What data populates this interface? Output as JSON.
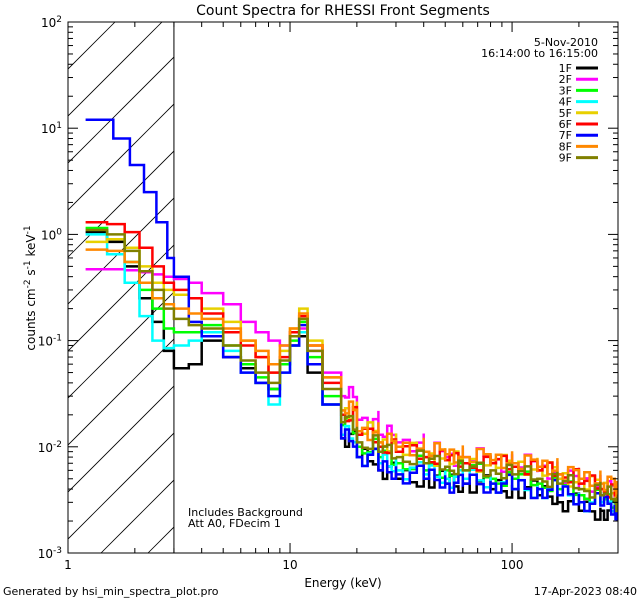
{
  "chart_data": {
    "type": "line",
    "title": "Count Spectra for RHESSI Front Segments",
    "xlabel": "Energy (keV)",
    "ylabel": "counts cm^-2 s^-1 keV^-1",
    "xscale": "log",
    "yscale": "log",
    "xlim": [
      1,
      300
    ],
    "ylim": [
      0.001,
      100
    ],
    "x_ticks": [
      {
        "value": 1,
        "label": "1"
      },
      {
        "value": 10,
        "label": "10"
      },
      {
        "value": 100,
        "label": "100"
      }
    ],
    "y_ticks": [
      {
        "value": 0.001,
        "base": "10",
        "exp": "-3"
      },
      {
        "value": 0.01,
        "base": "10",
        "exp": "-2"
      },
      {
        "value": 0.1,
        "base": "10",
        "exp": "-1"
      },
      {
        "value": 1,
        "base": "10",
        "exp": "0"
      },
      {
        "value": 10,
        "base": "10",
        "exp": "1"
      },
      {
        "value": 100,
        "base": "10",
        "exp": "2"
      }
    ],
    "hatched_region": {
      "from": 1,
      "to": 3
    },
    "date": "5-Nov-2010",
    "time_range": "16:14:00 to 16:15:00",
    "annotations": [
      "Includes Background",
      "Att A0, FDecim 1"
    ],
    "series": [
      {
        "name": "1F",
        "color": "#000000",
        "points": [
          [
            1.2,
            1.05
          ],
          [
            1.5,
            0.85
          ],
          [
            1.8,
            0.5
          ],
          [
            2.1,
            0.25
          ],
          [
            2.4,
            0.15
          ],
          [
            2.7,
            0.08
          ],
          [
            3.0,
            0.055
          ],
          [
            3.5,
            0.06
          ],
          [
            4.0,
            0.1
          ],
          [
            5.0,
            0.07
          ],
          [
            6.0,
            0.055
          ],
          [
            7.0,
            0.04
          ],
          [
            8.0,
            0.035
          ],
          [
            9.0,
            0.06
          ],
          [
            10.0,
            0.09
          ],
          [
            11.0,
            0.11
          ],
          [
            12.0,
            0.05
          ],
          [
            14.0,
            0.025
          ],
          [
            17.0,
            0.012
          ],
          [
            20.0,
            0.008
          ],
          [
            25.0,
            0.006
          ],
          [
            30.0,
            0.005
          ],
          [
            40.0,
            0.005
          ],
          [
            50.0,
            0.0045
          ],
          [
            60.0,
            0.0045
          ],
          [
            80.0,
            0.004
          ],
          [
            100.0,
            0.004
          ],
          [
            130.0,
            0.0035
          ],
          [
            160.0,
            0.003
          ],
          [
            200.0,
            0.0025
          ],
          [
            250.0,
            0.0025
          ],
          [
            290.0,
            0.0025
          ]
        ]
      },
      {
        "name": "2F",
        "color": "#ff00ff",
        "points": [
          [
            1.2,
            0.47
          ],
          [
            1.5,
            0.47
          ],
          [
            1.8,
            0.46
          ],
          [
            2.1,
            0.44
          ],
          [
            2.4,
            0.42
          ],
          [
            2.7,
            0.4
          ],
          [
            3.0,
            0.38
          ],
          [
            3.5,
            0.35
          ],
          [
            4.0,
            0.28
          ],
          [
            5.0,
            0.22
          ],
          [
            6.0,
            0.15
          ],
          [
            7.0,
            0.12
          ],
          [
            8.0,
            0.1
          ],
          [
            9.0,
            0.09
          ],
          [
            10.0,
            0.11
          ],
          [
            11.0,
            0.13
          ],
          [
            12.0,
            0.08
          ],
          [
            14.0,
            0.05
          ],
          [
            17.0,
            0.03
          ],
          [
            20.0,
            0.018
          ],
          [
            25.0,
            0.013
          ],
          [
            30.0,
            0.011
          ],
          [
            40.0,
            0.009
          ],
          [
            50.0,
            0.008
          ],
          [
            60.0,
            0.008
          ],
          [
            80.0,
            0.007
          ],
          [
            100.0,
            0.007
          ],
          [
            130.0,
            0.006
          ],
          [
            160.0,
            0.005
          ],
          [
            200.0,
            0.0045
          ],
          [
            250.0,
            0.004
          ],
          [
            290.0,
            0.0035
          ]
        ]
      },
      {
        "name": "3F",
        "color": "#00ff00",
        "points": [
          [
            1.2,
            1.15
          ],
          [
            1.5,
            0.9
          ],
          [
            1.8,
            0.55
          ],
          [
            2.1,
            0.3
          ],
          [
            2.4,
            0.2
          ],
          [
            2.7,
            0.13
          ],
          [
            3.0,
            0.12
          ],
          [
            3.5,
            0.12
          ],
          [
            4.0,
            0.14
          ],
          [
            5.0,
            0.09
          ],
          [
            6.0,
            0.06
          ],
          [
            7.0,
            0.045
          ],
          [
            8.0,
            0.035
          ],
          [
            9.0,
            0.06
          ],
          [
            10.0,
            0.1
          ],
          [
            11.0,
            0.15
          ],
          [
            12.0,
            0.07
          ],
          [
            14.0,
            0.03
          ],
          [
            17.0,
            0.016
          ],
          [
            20.0,
            0.01
          ],
          [
            25.0,
            0.008
          ],
          [
            30.0,
            0.007
          ],
          [
            40.0,
            0.006
          ],
          [
            50.0,
            0.006
          ],
          [
            60.0,
            0.006
          ],
          [
            80.0,
            0.005
          ],
          [
            100.0,
            0.005
          ],
          [
            130.0,
            0.0045
          ],
          [
            160.0,
            0.004
          ],
          [
            200.0,
            0.0035
          ],
          [
            250.0,
            0.003
          ],
          [
            290.0,
            0.003
          ]
        ]
      },
      {
        "name": "4F",
        "color": "#00ffff",
        "points": [
          [
            1.2,
            1.0
          ],
          [
            1.5,
            0.65
          ],
          [
            1.8,
            0.35
          ],
          [
            2.1,
            0.17
          ],
          [
            2.4,
            0.1
          ],
          [
            2.7,
            0.085
          ],
          [
            3.0,
            0.09
          ],
          [
            3.5,
            0.1
          ],
          [
            4.0,
            0.12
          ],
          [
            5.0,
            0.08
          ],
          [
            6.0,
            0.05
          ],
          [
            7.0,
            0.04
          ],
          [
            8.0,
            0.025
          ],
          [
            9.0,
            0.05
          ],
          [
            10.0,
            0.09
          ],
          [
            11.0,
            0.12
          ],
          [
            12.0,
            0.06
          ],
          [
            14.0,
            0.025
          ],
          [
            17.0,
            0.013
          ],
          [
            20.0,
            0.008
          ],
          [
            25.0,
            0.007
          ],
          [
            30.0,
            0.006
          ],
          [
            40.0,
            0.0055
          ],
          [
            50.0,
            0.005
          ],
          [
            60.0,
            0.005
          ],
          [
            80.0,
            0.0045
          ],
          [
            100.0,
            0.004
          ],
          [
            130.0,
            0.004
          ],
          [
            160.0,
            0.0035
          ],
          [
            200.0,
            0.003
          ],
          [
            250.0,
            0.003
          ],
          [
            290.0,
            0.0028
          ]
        ]
      },
      {
        "name": "5F",
        "color": "#e8d000",
        "points": [
          [
            1.2,
            0.85
          ],
          [
            1.5,
            0.9
          ],
          [
            1.8,
            0.75
          ],
          [
            2.1,
            0.5
          ],
          [
            2.4,
            0.35
          ],
          [
            2.7,
            0.3
          ],
          [
            3.0,
            0.27
          ],
          [
            3.5,
            0.25
          ],
          [
            4.0,
            0.2
          ],
          [
            5.0,
            0.15
          ],
          [
            6.0,
            0.1
          ],
          [
            7.0,
            0.07
          ],
          [
            8.0,
            0.05
          ],
          [
            9.0,
            0.08
          ],
          [
            10.0,
            0.13
          ],
          [
            11.0,
            0.2
          ],
          [
            12.0,
            0.1
          ],
          [
            14.0,
            0.045
          ],
          [
            17.0,
            0.022
          ],
          [
            20.0,
            0.014
          ],
          [
            25.0,
            0.011
          ],
          [
            30.0,
            0.009
          ],
          [
            40.0,
            0.008
          ],
          [
            50.0,
            0.0075
          ],
          [
            60.0,
            0.007
          ],
          [
            80.0,
            0.007
          ],
          [
            100.0,
            0.0065
          ],
          [
            130.0,
            0.006
          ],
          [
            160.0,
            0.005
          ],
          [
            200.0,
            0.0045
          ],
          [
            250.0,
            0.004
          ],
          [
            290.0,
            0.0035
          ]
        ]
      },
      {
        "name": "6F",
        "color": "#ff0000",
        "points": [
          [
            1.2,
            1.3
          ],
          [
            1.5,
            1.25
          ],
          [
            1.8,
            1.05
          ],
          [
            2.1,
            0.75
          ],
          [
            2.4,
            0.5
          ],
          [
            2.7,
            0.35
          ],
          [
            3.0,
            0.3
          ],
          [
            3.5,
            0.25
          ],
          [
            4.0,
            0.18
          ],
          [
            5.0,
            0.12
          ],
          [
            6.0,
            0.09
          ],
          [
            7.0,
            0.07
          ],
          [
            8.0,
            0.05
          ],
          [
            9.0,
            0.07
          ],
          [
            10.0,
            0.12
          ],
          [
            11.0,
            0.17
          ],
          [
            12.0,
            0.09
          ],
          [
            14.0,
            0.04
          ],
          [
            17.0,
            0.02
          ],
          [
            20.0,
            0.013
          ],
          [
            25.0,
            0.01
          ],
          [
            30.0,
            0.009
          ],
          [
            40.0,
            0.008
          ],
          [
            50.0,
            0.0075
          ],
          [
            60.0,
            0.007
          ],
          [
            80.0,
            0.007
          ],
          [
            100.0,
            0.0065
          ],
          [
            130.0,
            0.006
          ],
          [
            160.0,
            0.0055
          ],
          [
            200.0,
            0.0045
          ],
          [
            250.0,
            0.004
          ],
          [
            290.0,
            0.0035
          ]
        ]
      },
      {
        "name": "7F",
        "color": "#0000ff",
        "points": [
          [
            1.2,
            12.0
          ],
          [
            1.4,
            12.0
          ],
          [
            1.6,
            8.0
          ],
          [
            1.9,
            4.5
          ],
          [
            2.2,
            2.5
          ],
          [
            2.5,
            1.3
          ],
          [
            2.8,
            0.6
          ],
          [
            3.0,
            0.4
          ],
          [
            3.5,
            0.15
          ],
          [
            4.0,
            0.11
          ],
          [
            5.0,
            0.07
          ],
          [
            6.0,
            0.05
          ],
          [
            7.0,
            0.04
          ],
          [
            8.0,
            0.03
          ],
          [
            9.0,
            0.05
          ],
          [
            10.0,
            0.09
          ],
          [
            11.0,
            0.14
          ],
          [
            12.0,
            0.06
          ],
          [
            14.0,
            0.025
          ],
          [
            17.0,
            0.012
          ],
          [
            20.0,
            0.008
          ],
          [
            25.0,
            0.006
          ],
          [
            30.0,
            0.0055
          ],
          [
            40.0,
            0.005
          ],
          [
            50.0,
            0.0045
          ],
          [
            60.0,
            0.0045
          ],
          [
            80.0,
            0.0045
          ],
          [
            100.0,
            0.004
          ],
          [
            130.0,
            0.004
          ],
          [
            160.0,
            0.0035
          ],
          [
            200.0,
            0.003
          ],
          [
            250.0,
            0.0028
          ],
          [
            290.0,
            0.0025
          ]
        ]
      },
      {
        "name": "8F",
        "color": "#ff8800",
        "points": [
          [
            1.2,
            0.72
          ],
          [
            1.5,
            0.7
          ],
          [
            1.8,
            0.55
          ],
          [
            2.1,
            0.35
          ],
          [
            2.4,
            0.25
          ],
          [
            2.7,
            0.22
          ],
          [
            3.0,
            0.2
          ],
          [
            3.5,
            0.18
          ],
          [
            4.0,
            0.16
          ],
          [
            5.0,
            0.13
          ],
          [
            6.0,
            0.1
          ],
          [
            7.0,
            0.08
          ],
          [
            8.0,
            0.06
          ],
          [
            9.0,
            0.09
          ],
          [
            10.0,
            0.13
          ],
          [
            11.0,
            0.18
          ],
          [
            12.0,
            0.09
          ],
          [
            14.0,
            0.045
          ],
          [
            17.0,
            0.022
          ],
          [
            20.0,
            0.014
          ],
          [
            25.0,
            0.011
          ],
          [
            30.0,
            0.01
          ],
          [
            40.0,
            0.009
          ],
          [
            50.0,
            0.0085
          ],
          [
            60.0,
            0.008
          ],
          [
            80.0,
            0.0075
          ],
          [
            100.0,
            0.007
          ],
          [
            130.0,
            0.0065
          ],
          [
            160.0,
            0.0055
          ],
          [
            200.0,
            0.005
          ],
          [
            250.0,
            0.0045
          ],
          [
            290.0,
            0.004
          ]
        ]
      },
      {
        "name": "9F",
        "color": "#808000",
        "points": [
          [
            1.2,
            1.1
          ],
          [
            1.5,
            1.0
          ],
          [
            1.8,
            0.7
          ],
          [
            2.1,
            0.45
          ],
          [
            2.4,
            0.3
          ],
          [
            2.7,
            0.2
          ],
          [
            3.0,
            0.16
          ],
          [
            3.5,
            0.14
          ],
          [
            4.0,
            0.13
          ],
          [
            5.0,
            0.09
          ],
          [
            6.0,
            0.065
          ],
          [
            7.0,
            0.05
          ],
          [
            8.0,
            0.04
          ],
          [
            9.0,
            0.065
          ],
          [
            10.0,
            0.11
          ],
          [
            11.0,
            0.16
          ],
          [
            12.0,
            0.08
          ],
          [
            14.0,
            0.035
          ],
          [
            17.0,
            0.017
          ],
          [
            20.0,
            0.011
          ],
          [
            25.0,
            0.009
          ],
          [
            30.0,
            0.008
          ],
          [
            40.0,
            0.007
          ],
          [
            50.0,
            0.0065
          ],
          [
            60.0,
            0.006
          ],
          [
            80.0,
            0.006
          ],
          [
            100.0,
            0.0055
          ],
          [
            130.0,
            0.005
          ],
          [
            160.0,
            0.0045
          ],
          [
            200.0,
            0.004
          ],
          [
            250.0,
            0.0035
          ],
          [
            290.0,
            0.003
          ]
        ]
      }
    ]
  },
  "footer": {
    "generated_by": "Generated by hsi_min_spectra_plot.pro",
    "timestamp": "17-Apr-2023 08:40"
  }
}
